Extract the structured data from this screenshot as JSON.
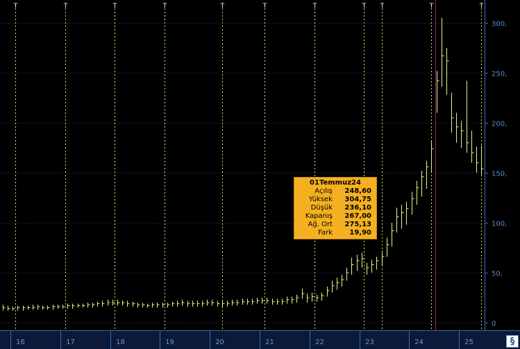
{
  "chart_data": {
    "type": "bar",
    "y_axis": {
      "ylim": [
        -8,
        318
      ],
      "ticks": [
        "0",
        "50,",
        "100,",
        "150,",
        "200,",
        "250,",
        "300,"
      ],
      "tick_values": [
        0,
        50,
        100,
        150,
        200,
        250,
        300
      ],
      "position": "right"
    },
    "x_axis": {
      "ticks": [
        "16",
        "17",
        "18",
        "19",
        "20",
        "21",
        "22",
        "23",
        "24",
        "25"
      ]
    },
    "event_markers": {
      "label": "T",
      "positions": [
        15.9,
        16.9,
        17.9,
        18.9,
        20.05,
        20.9,
        21.9,
        22.9,
        23.25,
        24.25,
        25.25
      ]
    },
    "highlight_x": 24.33,
    "grid": true,
    "series": [
      {
        "x": [
          15.65,
          15.75,
          15.85,
          15.95,
          16.05,
          16.15,
          16.25,
          16.35,
          16.45,
          16.55,
          16.65,
          16.75,
          16.85,
          16.95,
          17.05,
          17.15,
          17.25,
          17.35,
          17.45,
          17.55,
          17.65,
          17.75,
          17.85,
          17.95,
          18.05,
          18.15,
          18.25,
          18.35,
          18.45,
          18.55,
          18.65,
          18.75,
          18.85,
          18.95,
          19.05,
          19.15,
          19.25,
          19.35,
          19.45,
          19.55,
          19.65,
          19.75,
          19.85,
          19.95,
          20.05,
          20.15,
          20.25,
          20.35,
          20.45,
          20.55,
          20.65,
          20.75,
          20.85,
          20.95,
          21.05,
          21.15,
          21.25,
          21.35,
          21.45,
          21.55,
          21.65,
          21.75,
          21.85,
          21.95,
          22.05,
          22.15,
          22.25,
          22.35,
          22.45,
          22.55,
          22.65,
          22.75,
          22.85,
          22.95,
          23.05,
          23.15,
          23.25,
          23.35,
          23.45,
          23.55,
          23.65,
          23.75,
          23.85,
          23.95,
          24.05,
          24.15,
          24.25,
          24.35,
          24.45,
          24.55,
          24.65,
          24.75,
          24.85,
          24.95,
          25.05,
          25.15,
          25.25,
          25.35
        ],
        "high": [
          18,
          17,
          16,
          17,
          17,
          17,
          18,
          18,
          17,
          17,
          18,
          18,
          18,
          19,
          19,
          19,
          19,
          20,
          20,
          21,
          22,
          23,
          23,
          23,
          22,
          22,
          21,
          20,
          20,
          19,
          20,
          20,
          20,
          20,
          21,
          22,
          23,
          22,
          22,
          22,
          22,
          23,
          23,
          22,
          22,
          22,
          23,
          23,
          24,
          24,
          24,
          25,
          25,
          25,
          24,
          24,
          24,
          26,
          26,
          28,
          34,
          29,
          30,
          28,
          30,
          36,
          42,
          45,
          48,
          55,
          65,
          68,
          70,
          60,
          63,
          66,
          72,
          85,
          100,
          115,
          118,
          121,
          131,
          142,
          152,
          162,
          182,
          252,
          305,
          275,
          230,
          210,
          202,
          242,
          192,
          176,
          177,
          156
        ],
        "low": [
          12,
          12,
          12,
          12,
          12,
          13,
          13,
          13,
          13,
          13,
          13,
          14,
          14,
          14,
          14,
          15,
          15,
          15,
          15,
          16,
          16,
          17,
          17,
          17,
          17,
          16,
          16,
          15,
          15,
          15,
          15,
          15,
          15,
          15,
          16,
          16,
          17,
          16,
          16,
          16,
          16,
          17,
          17,
          16,
          16,
          16,
          17,
          17,
          18,
          18,
          18,
          19,
          19,
          19,
          18,
          18,
          18,
          19,
          19,
          20,
          24,
          20,
          21,
          21,
          22,
          26,
          30,
          33,
          36,
          42,
          48,
          52,
          55,
          48,
          50,
          53,
          57,
          66,
          76,
          90,
          94,
          98,
          108,
          118,
          126,
          134,
          150,
          210,
          236,
          228,
          190,
          180,
          175,
          170,
          160,
          150,
          148,
          144
        ],
        "close": [
          15,
          14,
          14,
          15,
          15,
          15,
          15,
          16,
          15,
          15,
          16,
          16,
          16,
          17,
          17,
          17,
          17,
          18,
          18,
          19,
          19,
          20,
          20,
          20,
          20,
          19,
          19,
          18,
          18,
          17,
          18,
          18,
          18,
          18,
          19,
          19,
          20,
          19,
          19,
          19,
          19,
          20,
          20,
          19,
          19,
          19,
          20,
          20,
          21,
          21,
          21,
          22,
          22,
          22,
          21,
          21,
          21,
          23,
          23,
          25,
          29,
          25,
          26,
          25,
          27,
          32,
          37,
          40,
          43,
          50,
          58,
          62,
          64,
          55,
          58,
          62,
          66,
          78,
          92,
          106,
          110,
          114,
          124,
          135,
          146,
          156,
          174,
          242,
          267,
          262,
          205,
          196,
          192,
          180,
          170,
          160,
          154,
          150
        ]
      }
    ],
    "tooltip": {
      "title": "01Temmuz24",
      "rows": [
        {
          "label": "Açılış",
          "value": "248,60"
        },
        {
          "label": "Yüksek",
          "value": "304,75"
        },
        {
          "label": "Düşük",
          "value": "236,10"
        },
        {
          "label": "Kapanış",
          "value": "267,00"
        },
        {
          "label": "Ağ. Ort",
          "value": "275,13"
        },
        {
          "label": "Fark",
          "value": "19,90"
        }
      ]
    },
    "colors": {
      "background": "#000000",
      "bar": "#f2f28a",
      "grid_dotted": "#1d3f8a",
      "event_line": "#dede6a",
      "highlight_line": "#a0205a",
      "axis_text": "#5a8ec8",
      "axis_line": "#3a6fb0",
      "x_label_text": "#6a9ad0",
      "x_axis_band": "#0a1a38"
    }
  }
}
